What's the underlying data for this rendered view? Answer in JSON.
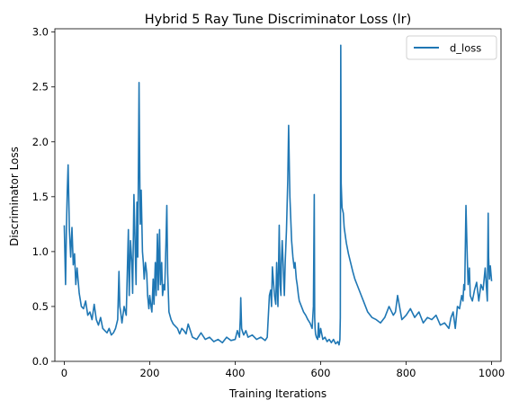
{
  "chart_data": {
    "type": "line",
    "title": "Hybrid 5 Ray Tune Discriminator Loss (lr)",
    "xlabel": "Training Iterations",
    "ylabel": "Discriminator Loss",
    "xlim": [
      -22,
      1022
    ],
    "ylim": [
      0.0,
      3.03
    ],
    "xticks": [
      0,
      200,
      400,
      600,
      800,
      1000
    ],
    "xtick_labels": [
      "0",
      "200",
      "400",
      "600",
      "800",
      "1000"
    ],
    "yticks": [
      0.0,
      0.5,
      1.0,
      1.5,
      2.0,
      2.5,
      3.0
    ],
    "ytick_labels": [
      "0.0",
      "0.5",
      "1.0",
      "1.5",
      "2.0",
      "2.5",
      "3.0"
    ],
    "grid": false,
    "legend_position": "top-right",
    "series": [
      {
        "name": "d_loss",
        "color": "#1f77b4",
        "x": [
          0,
          3,
          5,
          7,
          9,
          12,
          15,
          18,
          21,
          24,
          27,
          30,
          35,
          40,
          45,
          50,
          55,
          60,
          65,
          70,
          75,
          80,
          85,
          90,
          95,
          100,
          105,
          110,
          115,
          120,
          125,
          128,
          130,
          132,
          135,
          140,
          145,
          150,
          152,
          155,
          158,
          160,
          163,
          165,
          168,
          170,
          172,
          175,
          177,
          178,
          180,
          183,
          185,
          187,
          190,
          193,
          195,
          198,
          200,
          203,
          205,
          208,
          210,
          213,
          215,
          218,
          220,
          223,
          225,
          228,
          230,
          233,
          235,
          238,
          240,
          242,
          245,
          250,
          255,
          260,
          265,
          270,
          275,
          280,
          285,
          290,
          300,
          310,
          320,
          330,
          340,
          350,
          360,
          370,
          380,
          390,
          400,
          405,
          410,
          412,
          413,
          415,
          418,
          420,
          425,
          430,
          440,
          450,
          460,
          470,
          475,
          480,
          483,
          485,
          487,
          490,
          492,
          495,
          497,
          500,
          503,
          505,
          507,
          508,
          510,
          513,
          515,
          517,
          520,
          523,
          525,
          527,
          528,
          530,
          532,
          535,
          538,
          540,
          543,
          545,
          548,
          550,
          555,
          560,
          565,
          570,
          575,
          580,
          583,
          585,
          586,
          587,
          588,
          590,
          593,
          595,
          597,
          600,
          605,
          610,
          615,
          620,
          625,
          630,
          635,
          640,
          643,
          645,
          646,
          647,
          648,
          650,
          653,
          655,
          660,
          665,
          670,
          675,
          680,
          685,
          690,
          695,
          700,
          705,
          710,
          720,
          730,
          740,
          750,
          760,
          770,
          775,
          780,
          790,
          800,
          810,
          820,
          830,
          840,
          850,
          860,
          870,
          880,
          890,
          900,
          905,
          910,
          915,
          920,
          925,
          930,
          933,
          935,
          937,
          940,
          943,
          945,
          948,
          950,
          955,
          960,
          965,
          970,
          975,
          980,
          985,
          990,
          992,
          993,
          995,
          997,
          1000
        ],
        "y": [
          1.24,
          0.7,
          1.2,
          1.55,
          1.79,
          1.2,
          0.95,
          1.22,
          0.88,
          0.98,
          0.7,
          0.85,
          0.62,
          0.5,
          0.48,
          0.55,
          0.42,
          0.45,
          0.38,
          0.52,
          0.38,
          0.33,
          0.4,
          0.3,
          0.28,
          0.26,
          0.3,
          0.24,
          0.26,
          0.3,
          0.38,
          0.82,
          0.5,
          0.45,
          0.35,
          0.5,
          0.42,
          1.2,
          0.6,
          1.1,
          0.9,
          0.62,
          1.52,
          1.2,
          0.7,
          1.45,
          0.95,
          2.54,
          1.56,
          1.25,
          1.56,
          1.0,
          0.9,
          0.75,
          0.9,
          0.8,
          0.6,
          0.48,
          0.6,
          0.5,
          0.45,
          0.75,
          0.52,
          0.9,
          0.6,
          1.16,
          0.65,
          1.2,
          0.7,
          0.9,
          0.6,
          0.7,
          0.65,
          1.08,
          1.42,
          0.8,
          0.45,
          0.38,
          0.34,
          0.32,
          0.3,
          0.25,
          0.3,
          0.28,
          0.25,
          0.34,
          0.22,
          0.2,
          0.26,
          0.2,
          0.22,
          0.18,
          0.2,
          0.17,
          0.22,
          0.19,
          0.2,
          0.28,
          0.22,
          0.4,
          0.58,
          0.3,
          0.26,
          0.24,
          0.28,
          0.22,
          0.24,
          0.2,
          0.22,
          0.19,
          0.22,
          0.6,
          0.65,
          0.5,
          0.86,
          0.7,
          0.6,
          0.52,
          0.9,
          0.5,
          1.24,
          0.7,
          0.6,
          0.9,
          1.1,
          0.8,
          0.6,
          0.9,
          1.2,
          1.65,
          2.15,
          1.7,
          1.5,
          1.3,
          1.1,
          0.95,
          0.85,
          0.9,
          0.75,
          0.7,
          0.6,
          0.55,
          0.5,
          0.45,
          0.42,
          0.38,
          0.35,
          0.3,
          0.5,
          1.52,
          0.4,
          0.3,
          0.25,
          0.22,
          0.2,
          0.35,
          0.22,
          0.3,
          0.2,
          0.22,
          0.18,
          0.2,
          0.17,
          0.2,
          0.16,
          0.18,
          0.15,
          0.2,
          0.4,
          2.88,
          1.62,
          1.4,
          1.35,
          1.22,
          1.08,
          0.98,
          0.9,
          0.82,
          0.75,
          0.7,
          0.65,
          0.6,
          0.55,
          0.5,
          0.45,
          0.4,
          0.38,
          0.35,
          0.4,
          0.5,
          0.42,
          0.45,
          0.6,
          0.38,
          0.42,
          0.48,
          0.4,
          0.45,
          0.35,
          0.4,
          0.38,
          0.42,
          0.33,
          0.35,
          0.3,
          0.4,
          0.45,
          0.3,
          0.5,
          0.48,
          0.6,
          0.55,
          0.7,
          0.65,
          1.42,
          0.95,
          0.7,
          0.85,
          0.6,
          0.55,
          0.65,
          0.72,
          0.55,
          0.7,
          0.65,
          0.85,
          0.55,
          1.35,
          0.95,
          0.75,
          0.87,
          0.73
        ]
      }
    ]
  }
}
